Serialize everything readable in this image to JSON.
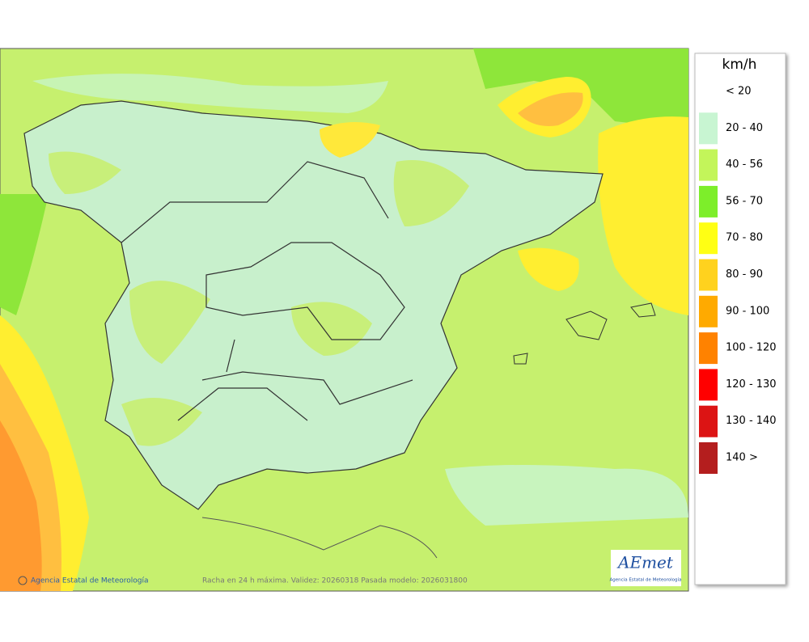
{
  "map": {
    "footer_left": "Agencia Estatal de Meteorología",
    "footer_center": "Racha en 24 h máxima. Validez: 20260318 Pasada modelo: 2026031800",
    "logo": {
      "brand": "AEmet",
      "caption": "Agencia Estatal de Meteorología"
    }
  },
  "legend": {
    "title": "km/h",
    "items": [
      {
        "label": "< 20"
      },
      {
        "label": "20 - 40",
        "color": "#c8f5d2"
      },
      {
        "label": "40 - 56",
        "color": "#c3f55a"
      },
      {
        "label": "56 - 70",
        "color": "#7dee2a"
      },
      {
        "label": "70 - 80",
        "color": "#ffff14"
      },
      {
        "label": "80 - 90",
        "color": "#ffd21e"
      },
      {
        "label": "90 - 100",
        "color": "#ffaa00"
      },
      {
        "label": "100 - 120",
        "color": "#ff8200"
      },
      {
        "label": "120 - 130",
        "color": "#ff0000"
      },
      {
        "label": "130 - 140",
        "color": "#dc1414"
      },
      {
        "label": "140 >",
        "color": "#b41e1e"
      }
    ]
  }
}
